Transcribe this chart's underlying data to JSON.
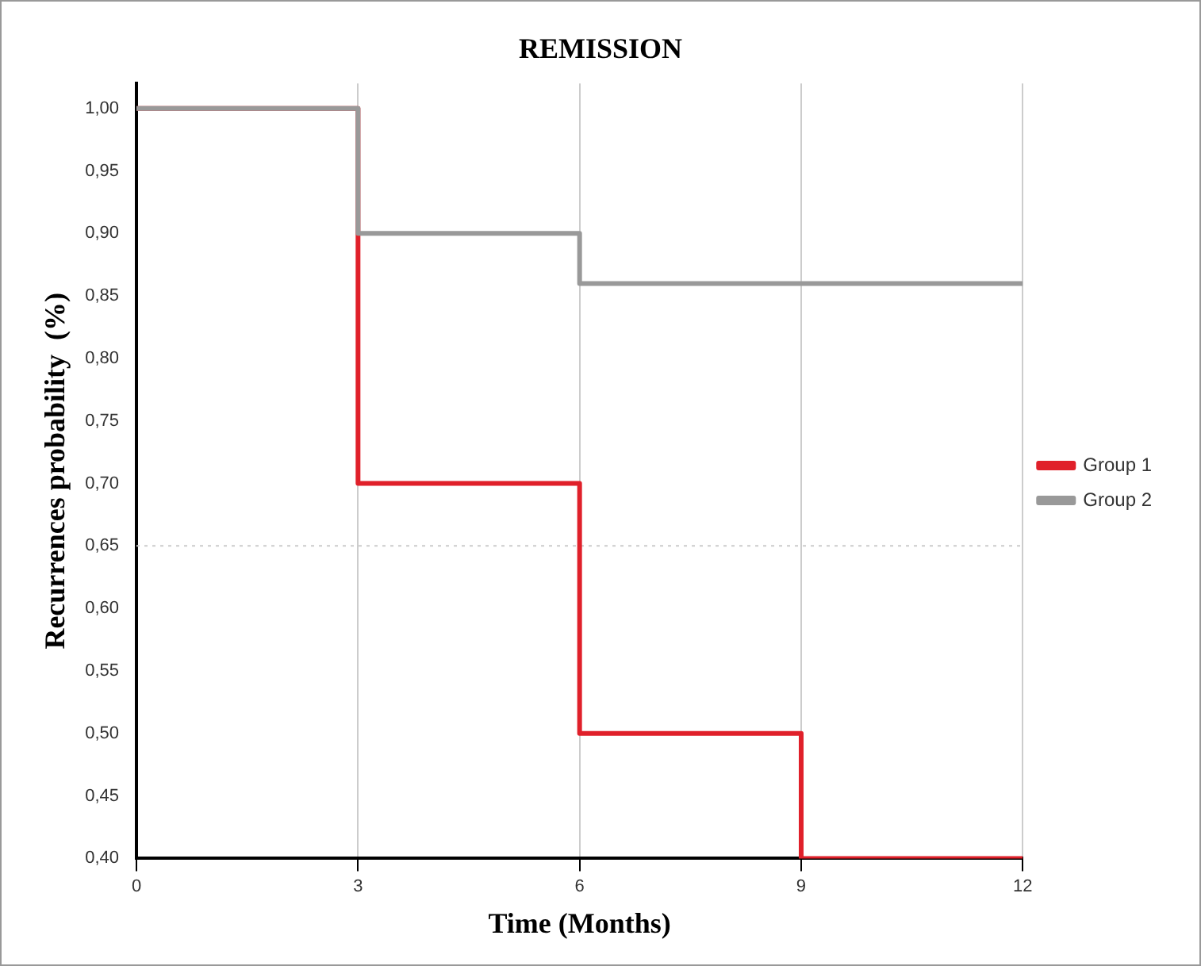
{
  "chart_data": {
    "type": "step",
    "title": "REMISSION",
    "xlabel": "Time (Months)",
    "ylabel": "Recurrences probability  (%)",
    "x": [
      0,
      3,
      6,
      9,
      12
    ],
    "series": [
      {
        "name": "Group 1",
        "color": "#e0202a",
        "values": [
          1.0,
          0.7,
          0.5,
          0.4,
          0.4
        ]
      },
      {
        "name": "Group 2",
        "color": "#999999",
        "values": [
          1.0,
          0.9,
          0.86,
          0.86,
          0.86
        ]
      }
    ],
    "xlim": [
      0,
      12
    ],
    "xticks": [
      0,
      3,
      6,
      9,
      12
    ],
    "ylim": [
      0.4,
      1.02
    ],
    "yticks": [
      {
        "value": 0.4,
        "label": "0,40"
      },
      {
        "value": 0.45,
        "label": "0,45"
      },
      {
        "value": 0.5,
        "label": "0,50"
      },
      {
        "value": 0.55,
        "label": "0,55"
      },
      {
        "value": 0.6,
        "label": "0,60"
      },
      {
        "value": 0.65,
        "label": "0,65"
      },
      {
        "value": 0.7,
        "label": "0,70"
      },
      {
        "value": 0.75,
        "label": "0,75"
      },
      {
        "value": 0.8,
        "label": "0,80"
      },
      {
        "value": 0.85,
        "label": "0,85"
      },
      {
        "value": 0.9,
        "label": "0,90"
      },
      {
        "value": 0.95,
        "label": "0,95"
      },
      {
        "value": 1.0,
        "label": "1,00"
      }
    ],
    "grid": "x",
    "legend": "right",
    "marker": "none",
    "line_style": "solid",
    "ref_lines": [
      {
        "axis": "y",
        "value": 0.65,
        "color": "#cccccc",
        "line_style": "dotted"
      }
    ]
  }
}
